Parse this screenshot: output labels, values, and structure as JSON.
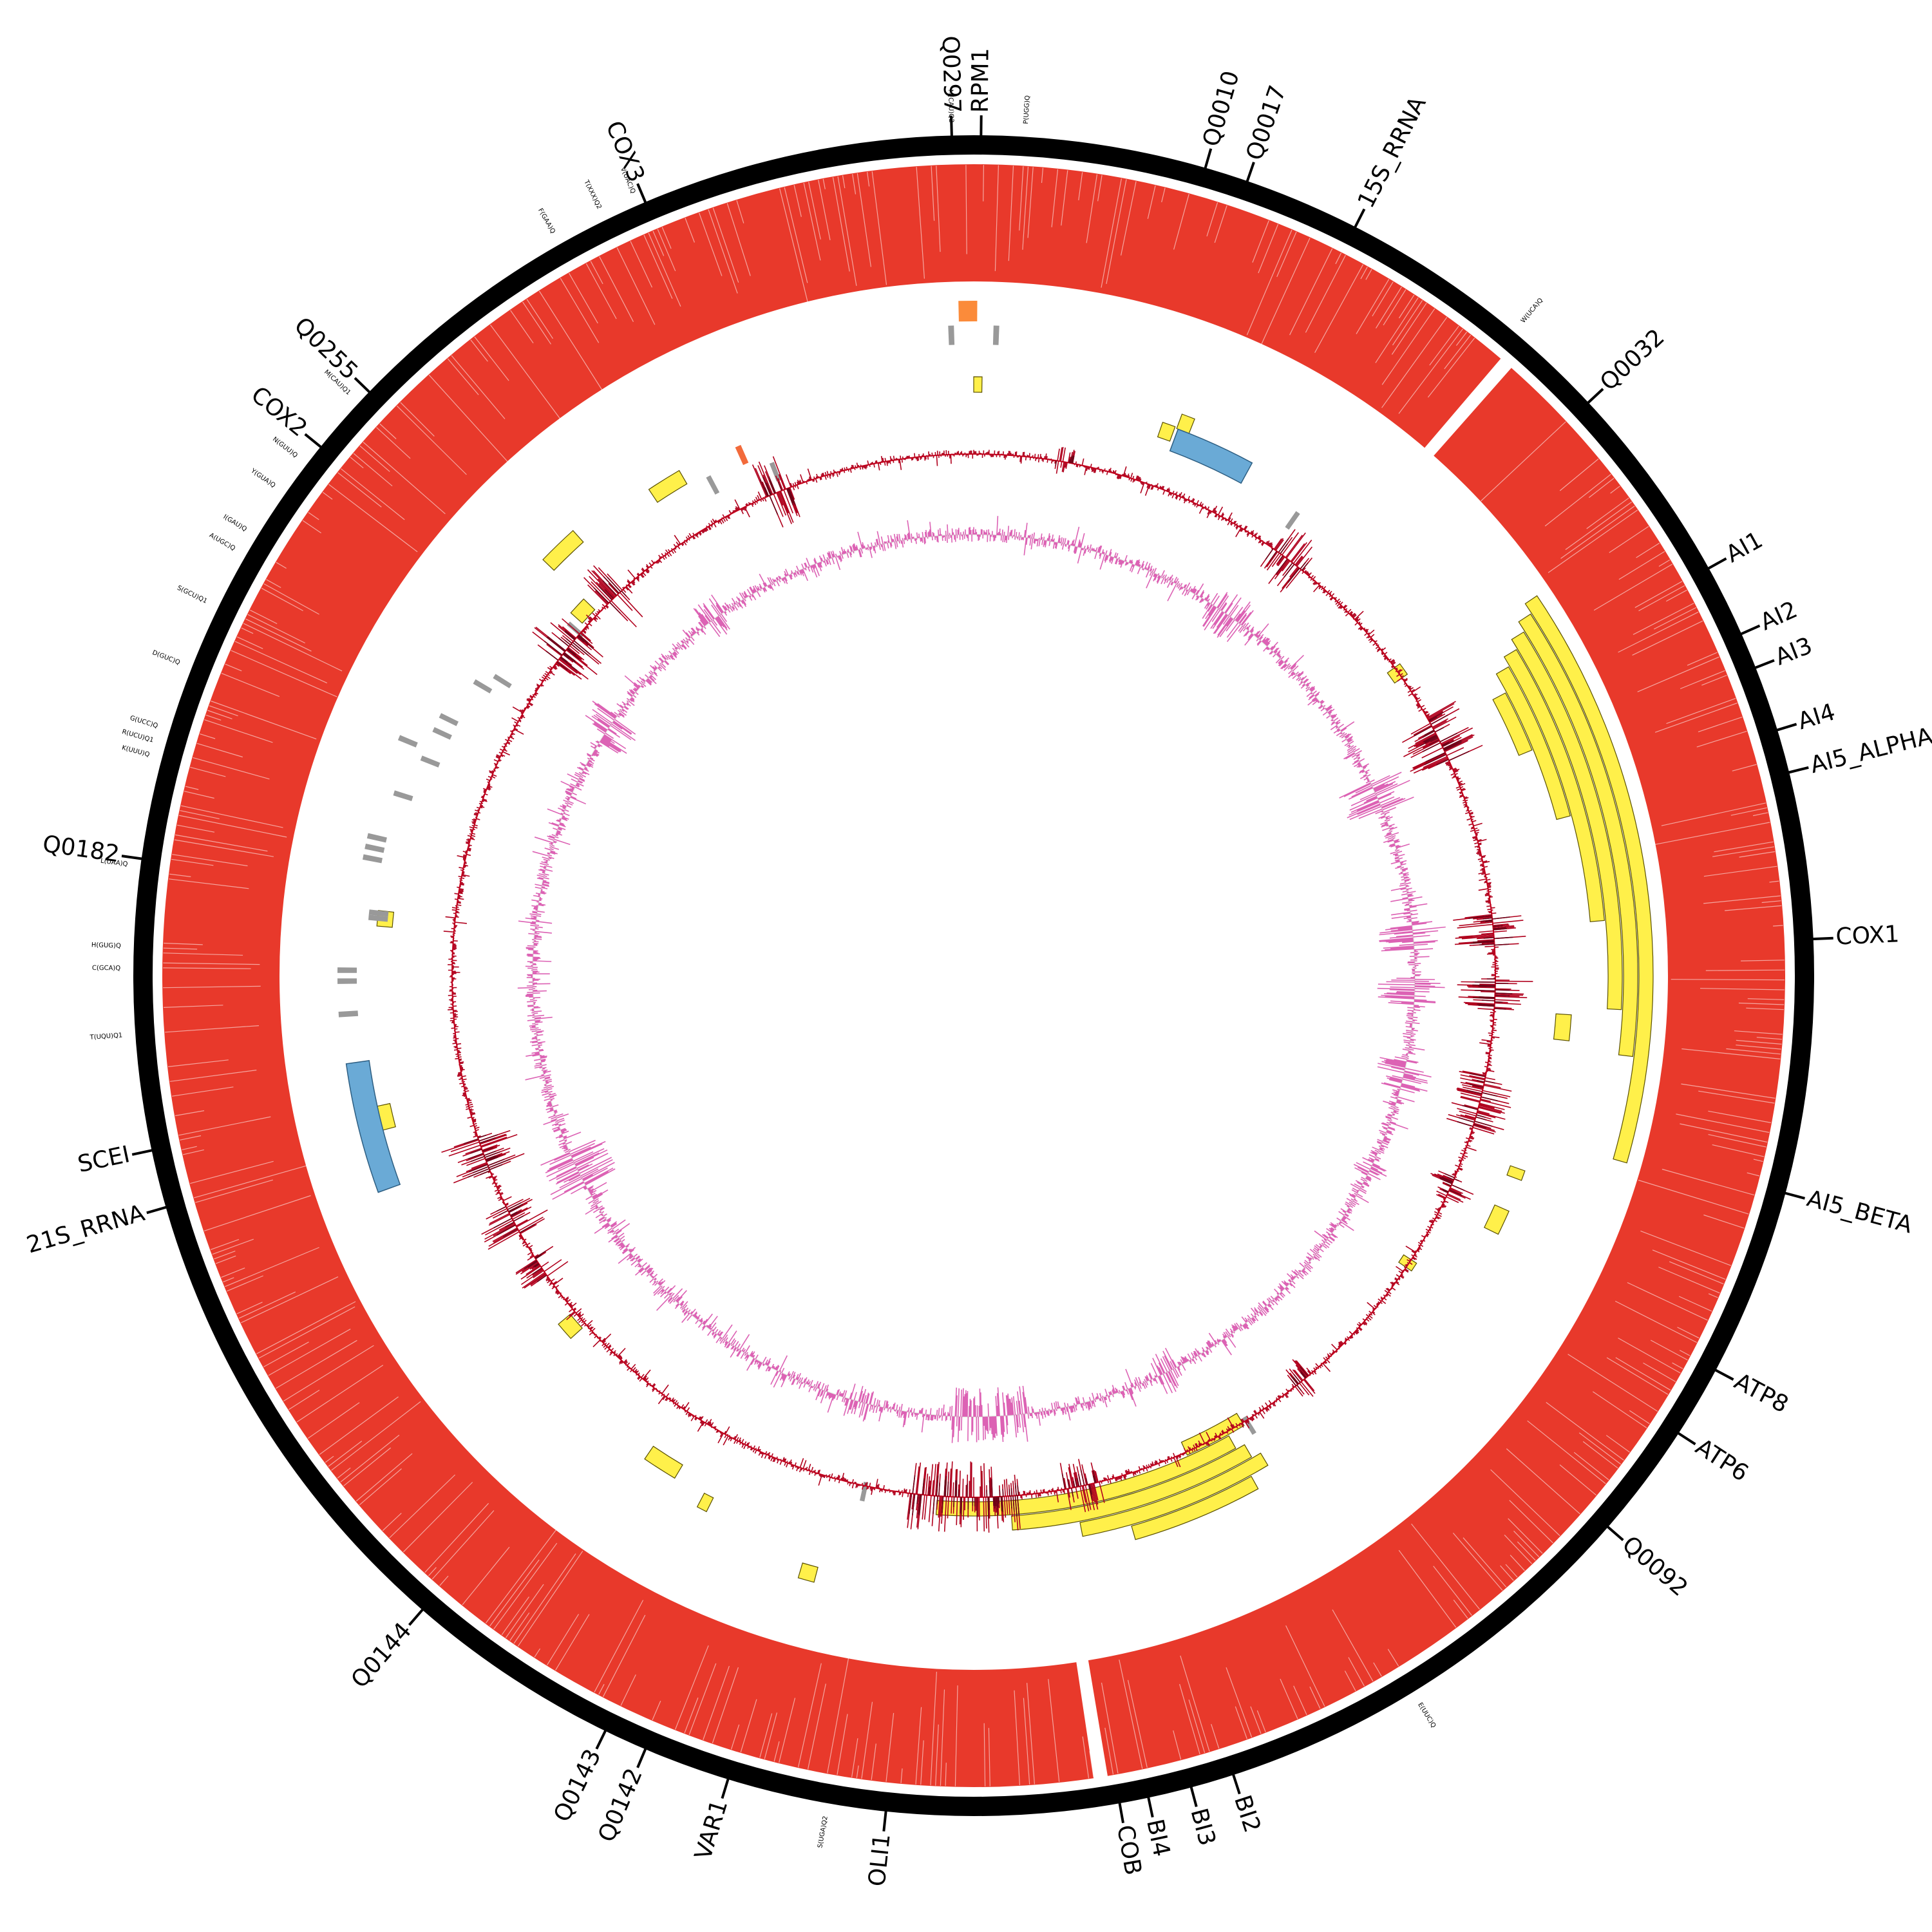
{
  "genome_map": {
    "colors": {
      "backbone": "#000000",
      "coverage": "#e8392b",
      "intron": "#fff04a",
      "intron_stroke": "#5a5000",
      "rrna": "#6aaad6",
      "trna": "#999999",
      "trna_highlight": "#f26a3b",
      "orf_orange": "#fb8b3a",
      "gc_skew": "#b0001d",
      "gc_skew_dark": "#6b0016",
      "gc_line": "#d0001b",
      "at_skew": "#dc62b4",
      "at_skew_fill": "#e6f2e6"
    },
    "gene_labels": [
      {
        "id": "q0297",
        "text": "Q0297",
        "angle": -1.5
      },
      {
        "id": "rpm1",
        "text": "RPM1",
        "angle": 0.5
      },
      {
        "id": "q0010",
        "text": "Q0010",
        "angle": 16.0
      },
      {
        "id": "q0017",
        "text": "Q0017",
        "angle": 19.0
      },
      {
        "id": "15s-rrna",
        "text": "15S_RRNA",
        "angle": 27.0
      },
      {
        "id": "q0032",
        "text": "Q0032",
        "angle": 47.0
      },
      {
        "id": "ai1",
        "text": "AI1",
        "angle": 61.0
      },
      {
        "id": "ai2",
        "text": "AI2",
        "angle": 66.0
      },
      {
        "id": "ai3",
        "text": "AI3",
        "angle": 68.5
      },
      {
        "id": "ai4",
        "text": "AI4",
        "angle": 73.0
      },
      {
        "id": "ai5-alpha",
        "text": "AI5_ALPHA",
        "angle": 76.0
      },
      {
        "id": "cox1",
        "text": "COX1",
        "angle": 87.5
      },
      {
        "id": "ai5-beta",
        "text": "AI5_BETA",
        "angle": 105.0
      },
      {
        "id": "atp8",
        "text": "ATP8",
        "angle": 118.0
      },
      {
        "id": "atp6",
        "text": "ATP6",
        "angle": 123.0
      },
      {
        "id": "q0092",
        "text": "Q0092",
        "angle": 131.0
      },
      {
        "id": "bi2",
        "text": "BI2",
        "angle": 162.0
      },
      {
        "id": "bi3",
        "text": "BI3",
        "angle": 165.0
      },
      {
        "id": "bi4",
        "text": "BI4",
        "angle": 168.0
      },
      {
        "id": "cob",
        "text": "COB",
        "angle": 170.0
      },
      {
        "id": "oli1",
        "text": "OLI1",
        "angle": 186.0
      },
      {
        "id": "var1",
        "text": "VAR1",
        "angle": 197.0
      },
      {
        "id": "q0142",
        "text": "Q0142",
        "angle": 203.0
      },
      {
        "id": "q0143",
        "text": "Q0143",
        "angle": 206.0
      },
      {
        "id": "q0144",
        "text": "Q0144",
        "angle": 221.0
      },
      {
        "id": "21s-rrna",
        "text": "21S_RRNA",
        "angle": 254.0
      },
      {
        "id": "scei",
        "text": "SCEI",
        "angle": 258.0
      },
      {
        "id": "q0182",
        "text": "Q0182",
        "angle": 278.0
      },
      {
        "id": "cox2",
        "text": "COX2",
        "angle": 309.0
      },
      {
        "id": "q0255",
        "text": "Q0255",
        "angle": 314.0
      },
      {
        "id": "cox3",
        "text": "COX3",
        "angle": 337.0
      }
    ],
    "trna_labels": [
      {
        "id": "m-cau-q2",
        "text": "M(CAU)Q2",
        "angle": -1.5
      },
      {
        "id": "p-ugg-q",
        "text": "P(UGG)Q",
        "angle": 3.5
      },
      {
        "id": "w-uca-q",
        "text": "W(UCA)Q",
        "angle": 40.0
      },
      {
        "id": "e-uuc-q",
        "text": "E(UUC)Q",
        "angle": 148.5
      },
      {
        "id": "s-uga-q2",
        "text": "S(UGA)Q2",
        "angle": 190.0
      },
      {
        "id": "t-uqu-q1",
        "text": "T(UQU)Q1",
        "angle": 266.0
      },
      {
        "id": "c-gca-q",
        "text": "C(GCA)Q",
        "angle": 270.5
      },
      {
        "id": "h-gug-q",
        "text": "H(GUG)Q",
        "angle": 272.0
      },
      {
        "id": "l-uaa-q",
        "text": "L(UAA)Q",
        "angle": 277.5
      },
      {
        "id": "k-uuu-q",
        "text": "K(UUU)Q",
        "angle": 285.0
      },
      {
        "id": "r-ucu-q1",
        "text": "R(UCU)Q1",
        "angle": 286.0
      },
      {
        "id": "g-ucc-q",
        "text": "G(UCC)Q",
        "angle": 287.0
      },
      {
        "id": "d-guc-q",
        "text": "D(GUC)Q",
        "angle": 291.5
      },
      {
        "id": "s-gcu-q1",
        "text": "S(GCU)Q1",
        "angle": 296.0
      },
      {
        "id": "a-ugc-q",
        "text": "A(UGC)Q",
        "angle": 300.0
      },
      {
        "id": "i-gau-q",
        "text": "I(GAU)Q",
        "angle": 301.5
      },
      {
        "id": "y-gua-q",
        "text": "Y(GUA)Q",
        "angle": 305.0
      },
      {
        "id": "n-guu-q",
        "text": "N(GUU)Q",
        "angle": 307.5
      },
      {
        "id": "m-cau-q1",
        "text": "M(CAU)Q1",
        "angle": 313.0
      },
      {
        "id": "f-gaa-q",
        "text": "F(GAA)Q",
        "angle": 330.5
      },
      {
        "id": "t-xxx-q2",
        "text": "T(XXX)Q2",
        "angle": 334.0
      },
      {
        "id": "v-uac-q",
        "text": "V(UAC)Q",
        "angle": 336.5
      }
    ],
    "introns": [
      {
        "start": 56,
        "end": 106,
        "lane": 0
      },
      {
        "start": 57,
        "end": 97,
        "lane": 1
      },
      {
        "start": 58,
        "end": 93,
        "lane": 2
      },
      {
        "start": 59,
        "end": 85,
        "lane": 3
      },
      {
        "start": 60,
        "end": 75,
        "lane": 4
      },
      {
        "start": 62,
        "end": 68,
        "lane": 5
      },
      {
        "start": 151,
        "end": 164,
        "lane": 6
      },
      {
        "start": 149,
        "end": 169,
        "lane": 7
      },
      {
        "start": 150,
        "end": 176,
        "lane": 8
      },
      {
        "start": 151,
        "end": 184,
        "lane": 9
      },
      {
        "start": 149,
        "end": 156,
        "lane": 10
      }
    ],
    "small_orfs": [
      {
        "angle": 0.4,
        "width": 0.8,
        "lane": 5
      },
      {
        "angle": 19.5,
        "width": 1.3,
        "lane": 6
      },
      {
        "angle": 21.0,
        "width": 1.3,
        "lane": 5
      },
      {
        "angle": 54.5,
        "width": 1.4,
        "lane": 10
      },
      {
        "angle": 95.0,
        "width": 2.5,
        "lane": 5
      },
      {
        "angle": 110.0,
        "width": 1.0,
        "lane": 6
      },
      {
        "angle": 115.0,
        "width": 2.5,
        "lane": 6
      },
      {
        "angle": 123.5,
        "width": 1.0,
        "lane": 10
      },
      {
        "angle": 195.5,
        "width": 1.5,
        "lane": 3
      },
      {
        "angle": 207.0,
        "width": 1.0,
        "lane": 5
      },
      {
        "angle": 212.5,
        "width": 3.5,
        "lane": 6
      },
      {
        "angle": 229.0,
        "width": 2.0,
        "lane": 9
      },
      {
        "angle": 256.5,
        "width": 2.3,
        "lane": 4
      },
      {
        "angle": 275.5,
        "width": 1.5,
        "lane": 5
      },
      {
        "angle": 313.0,
        "width": 2.0,
        "lane": 9
      },
      {
        "angle": 316.0,
        "width": 4.0,
        "lane": 5
      },
      {
        "angle": 328.0,
        "width": 3.5,
        "lane": 6
      }
    ],
    "rrna_blocks": [
      {
        "start": 20.5,
        "end": 28.5,
        "lane": 4
      },
      {
        "start": 250.0,
        "end": 262.0,
        "lane": 1
      }
    ],
    "trna_ticks": [
      {
        "angle": -2.0,
        "lane": 0
      },
      {
        "angle": 2.0,
        "lane": 0
      },
      {
        "angle": 35.0,
        "lane": 6
      },
      {
        "angle": 148.5,
        "lane": 8
      },
      {
        "angle": 192.0,
        "lane": 8
      },
      {
        "angle": 266.5,
        "lane": 1
      },
      {
        "angle": 269.5,
        "lane": 1
      },
      {
        "angle": 270.5,
        "lane": 1
      },
      {
        "angle": 275.5,
        "lane": 3
      },
      {
        "angle": 276.0,
        "lane": 3
      },
      {
        "angle": 281.0,
        "lane": 2
      },
      {
        "angle": 282.0,
        "lane": 2
      },
      {
        "angle": 283.0,
        "lane": 2
      },
      {
        "angle": 287.5,
        "lane": 3
      },
      {
        "angle": 291.5,
        "lane": 4
      },
      {
        "angle": 292.5,
        "lane": 2
      },
      {
        "angle": 294.5,
        "lane": 4
      },
      {
        "angle": 296.0,
        "lane": 4
      },
      {
        "angle": 300.5,
        "lane": 5
      },
      {
        "angle": 302.0,
        "lane": 6
      },
      {
        "angle": 311.0,
        "lane": 8
      },
      {
        "angle": 332.0,
        "lane": 6
      },
      {
        "angle": 338.5,
        "lane": 7
      }
    ],
    "highlight_ticks": [
      {
        "angle": 336.0,
        "lane": 5
      }
    ],
    "orange_orf": {
      "angle": -0.5,
      "width": 1.6
    },
    "gaps": [
      {
        "angle": 41.0,
        "width": 1.0
      },
      {
        "angle": 171.0,
        "width": 1.0
      }
    ],
    "gc_hotspots": [
      {
        "angle": 338.0,
        "width": 3.0,
        "amp": 0.9
      },
      {
        "angle": 316.5,
        "width": 2.5,
        "amp": 1.0
      },
      {
        "angle": 309.0,
        "width": 4.5,
        "amp": 1.0
      },
      {
        "angle": 250.0,
        "width": 4.0,
        "amp": 1.0
      },
      {
        "angle": 242.0,
        "width": 3.5,
        "amp": 0.9
      },
      {
        "angle": 236.0,
        "width": 2.5,
        "amp": 0.7
      },
      {
        "angle": 181.0,
        "width": 12.0,
        "amp": 0.9
      },
      {
        "angle": 168.0,
        "width": 4.0,
        "amp": 0.7
      },
      {
        "angle": 141.0,
        "width": 2.0,
        "amp": 0.6
      },
      {
        "angle": 114.0,
        "width": 2.5,
        "amp": 0.6
      },
      {
        "angle": 104.0,
        "width": 6.0,
        "amp": 0.8
      },
      {
        "angle": 92.0,
        "width": 3.5,
        "amp": 1.0
      },
      {
        "angle": 85.0,
        "width": 3.5,
        "amp": 1.0
      },
      {
        "angle": 63.0,
        "width": 5.5,
        "amp": 1.0
      },
      {
        "angle": 37.0,
        "width": 4.0,
        "amp": 0.8
      },
      {
        "angle": 10.0,
        "width": 2.0,
        "amp": 0.4
      }
    ],
    "at_hotspots": [
      {
        "angle": 66.0,
        "width": 4.0,
        "amp": 1.0
      },
      {
        "angle": 85.0,
        "width": 3.5,
        "amp": 1.0
      },
      {
        "angle": 92.0,
        "width": 3.5,
        "amp": 1.0
      },
      {
        "angle": 103.0,
        "width": 4.0,
        "amp": 0.8
      },
      {
        "angle": 116.0,
        "width": 2.0,
        "amp": 0.5
      },
      {
        "angle": 178.0,
        "width": 10.0,
        "amp": 0.8
      },
      {
        "angle": 195.0,
        "width": 3.0,
        "amp": 0.5
      },
      {
        "angle": 244.0,
        "width": 5.0,
        "amp": 1.0
      },
      {
        "angle": 304.0,
        "width": 4.0,
        "amp": 0.8
      },
      {
        "angle": 324.0,
        "width": 3.0,
        "amp": 0.6
      },
      {
        "angle": 35.0,
        "width": 5.0,
        "amp": 0.7
      },
      {
        "angle": 154.0,
        "width": 3.0,
        "amp": 0.6
      }
    ]
  }
}
